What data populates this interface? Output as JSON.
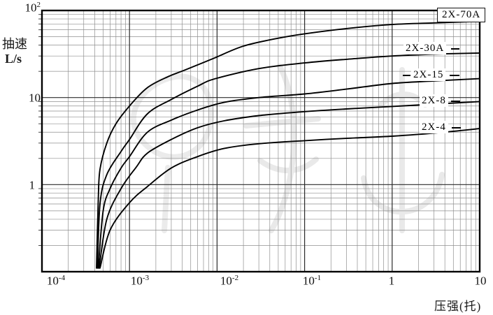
{
  "chart_data": {
    "type": "line",
    "title": "",
    "xlabel": "压强(托)",
    "ylabel_line1": "抽速",
    "ylabel_line2": "L/s",
    "x_scale": "log",
    "y_scale": "log",
    "xlim": [
      0.0001,
      10
    ],
    "ylim": [
      0.1,
      100
    ],
    "grid": "log-log graph paper, all minor decade lines drawn",
    "legend_position": "labels at right side of curves",
    "x_ticks": [
      {
        "base": "10",
        "exp": "-4",
        "value": 0.0001
      },
      {
        "base": "10",
        "exp": "-3",
        "value": 0.001
      },
      {
        "base": "10",
        "exp": "-2",
        "value": 0.01
      },
      {
        "base": "10",
        "exp": "-1",
        "value": 0.1
      },
      {
        "base": "1",
        "exp": "",
        "value": 1
      },
      {
        "base": "10",
        "exp": "",
        "value": 10
      }
    ],
    "y_ticks": [
      {
        "base": "10",
        "exp": "2",
        "value": 100
      },
      {
        "base": "10",
        "exp": "",
        "value": 10
      },
      {
        "base": "1",
        "exp": "",
        "value": 1
      }
    ],
    "series": [
      {
        "name": "2X-70A",
        "boxed": true,
        "points": [
          [
            0.00042,
            0.11
          ],
          [
            0.00044,
            0.7
          ],
          [
            0.00046,
            1.5
          ],
          [
            0.00055,
            3.0
          ],
          [
            0.0007,
            5.0
          ],
          [
            0.001,
            8.0
          ],
          [
            0.0016,
            13
          ],
          [
            0.0028,
            17.5
          ],
          [
            0.0042,
            20.5
          ],
          [
            0.009,
            28
          ],
          [
            0.02,
            39
          ],
          [
            0.05,
            48
          ],
          [
            0.1,
            54
          ],
          [
            0.3,
            62
          ],
          [
            1,
            69
          ],
          [
            3,
            72
          ],
          [
            10,
            75
          ]
        ]
      },
      {
        "name": "2X-30A",
        "boxed": false,
        "points": [
          [
            0.00043,
            0.11
          ],
          [
            0.00046,
            0.6
          ],
          [
            0.00055,
            1.3
          ],
          [
            0.0008,
            2.4
          ],
          [
            0.001,
            3.3
          ],
          [
            0.0016,
            6.5
          ],
          [
            0.003,
            9.5
          ],
          [
            0.006,
            13.5
          ],
          [
            0.0094,
            16.4
          ],
          [
            0.03,
            21.5
          ],
          [
            0.1,
            25
          ],
          [
            0.3,
            27.5
          ],
          [
            1,
            30
          ],
          [
            3,
            31.5
          ],
          [
            10,
            32.5
          ]
        ]
      },
      {
        "name": "2X-15",
        "boxed": false,
        "points": [
          [
            0.00044,
            0.11
          ],
          [
            0.0005,
            0.5
          ],
          [
            0.0006,
            0.9
          ],
          [
            0.0008,
            1.55
          ],
          [
            0.001,
            2.1
          ],
          [
            0.0016,
            4.0
          ],
          [
            0.003,
            5.5
          ],
          [
            0.006,
            7.2
          ],
          [
            0.012,
            8.8
          ],
          [
            0.03,
            10
          ],
          [
            0.1,
            11
          ],
          [
            0.3,
            12.5
          ],
          [
            1,
            14.5
          ],
          [
            3,
            15.5
          ],
          [
            10,
            16.5
          ]
        ]
      },
      {
        "name": "2X-8",
        "boxed": false,
        "points": [
          [
            0.00045,
            0.11
          ],
          [
            0.00055,
            0.4
          ],
          [
            0.0008,
            0.9
          ],
          [
            0.0012,
            1.6
          ],
          [
            0.0016,
            2.3
          ],
          [
            0.003,
            3.3
          ],
          [
            0.006,
            4.5
          ],
          [
            0.012,
            5.4
          ],
          [
            0.03,
            6.2
          ],
          [
            0.1,
            6.9
          ],
          [
            0.3,
            7.4
          ],
          [
            1,
            7.9
          ],
          [
            3,
            8.4
          ],
          [
            10,
            9.0
          ]
        ]
      },
      {
        "name": "2X-4",
        "boxed": false,
        "points": [
          [
            0.00046,
            0.11
          ],
          [
            0.0006,
            0.3
          ],
          [
            0.001,
            0.62
          ],
          [
            0.0016,
            0.95
          ],
          [
            0.003,
            1.55
          ],
          [
            0.006,
            2.1
          ],
          [
            0.012,
            2.6
          ],
          [
            0.03,
            2.95
          ],
          [
            0.1,
            3.2
          ],
          [
            0.3,
            3.4
          ],
          [
            1,
            3.6
          ],
          [
            3,
            3.9
          ],
          [
            10,
            4.4
          ]
        ]
      }
    ],
    "colors": {
      "curve": "#000000",
      "grid_minor": "#8f8f8f",
      "grid_major": "#2b2b2b",
      "border": "#000000",
      "watermark": "#dcdcdc",
      "background": "#ffffff"
    }
  }
}
